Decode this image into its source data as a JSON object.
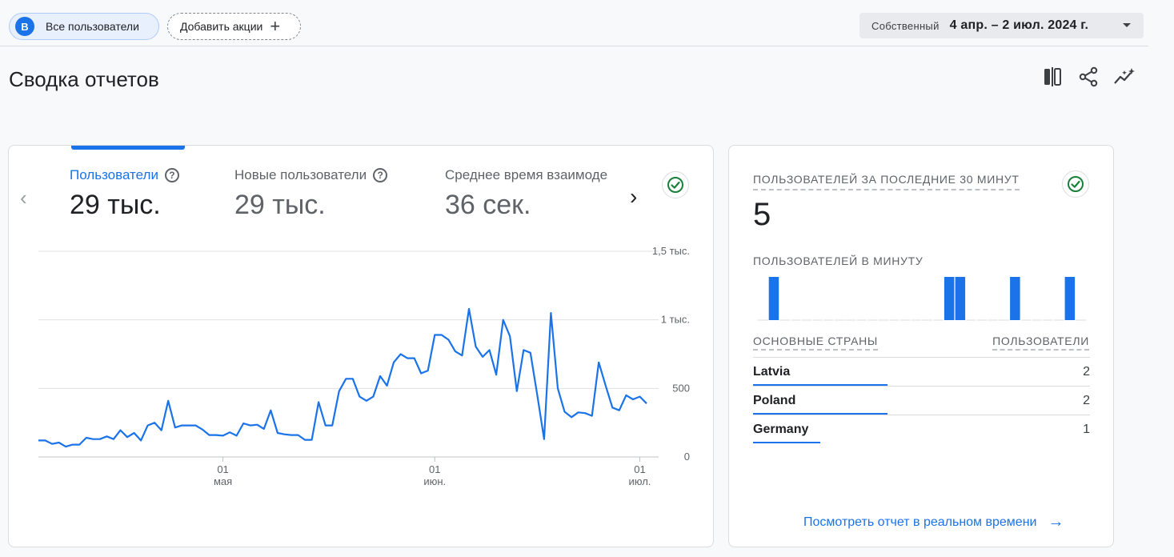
{
  "header": {
    "segment_chip": {
      "letter": "В",
      "label": "Все пользователи"
    },
    "add_button": {
      "label": "Добавить акции",
      "plus": "+"
    },
    "date_range": {
      "comparison": "Собственный",
      "range": "4 апр. – 2 июл. 2024 г."
    }
  },
  "page": {
    "title": "Сводка отчетов",
    "toolbar_icons": [
      "compare-columns-icon",
      "share-icon",
      "insights-icon"
    ]
  },
  "metrics": [
    {
      "label": "Пользователи",
      "value": "29 тыс.",
      "active": true,
      "help": "?"
    },
    {
      "label": "Новые пользователи",
      "value": "29 тыс.",
      "active": false,
      "help": "?"
    },
    {
      "label": "Среднее время взаимоде",
      "value": "36 сек.",
      "active": false
    }
  ],
  "nav": {
    "prev": "‹",
    "next": "›"
  },
  "chart_data": {
    "type": "line",
    "title": "",
    "xlabel": "",
    "ylabel": "",
    "ylim": [
      0,
      1500
    ],
    "y_ticks": [
      "1,5 тыс.",
      "1 тыс.",
      "500",
      "0"
    ],
    "y_tick_values": [
      1500,
      1000,
      500,
      0
    ],
    "x_ticks": [
      {
        "day": "01",
        "month": "мая",
        "index": 27
      },
      {
        "day": "01",
        "month": "июн.",
        "index": 58
      },
      {
        "day": "01",
        "month": "июл.",
        "index": 88
      }
    ],
    "x_start": "2024-04-04",
    "x_end": "2024-07-02",
    "color": "#1a73e8",
    "series": [
      {
        "values": [
          120,
          120,
          95,
          105,
          75,
          90,
          90,
          140,
          130,
          130,
          150,
          130,
          195,
          145,
          175,
          120,
          230,
          250,
          195,
          410,
          215,
          230,
          230,
          230,
          200,
          160,
          160,
          155,
          180,
          155,
          245,
          230,
          235,
          205,
          340,
          175,
          165,
          160,
          160,
          125,
          125,
          400,
          230,
          230,
          480,
          570,
          570,
          440,
          410,
          440,
          590,
          520,
          690,
          750,
          720,
          720,
          610,
          630,
          890,
          890,
          855,
          770,
          740,
          1080,
          805,
          730,
          780,
          600,
          1000,
          880,
          480,
          780,
          760,
          450,
          130,
          1050,
          500,
          330,
          290,
          325,
          320,
          300,
          690,
          520,
          360,
          340,
          450,
          420,
          440,
          390
        ]
      }
    ]
  },
  "realtime": {
    "title": "ПОЛЬЗОВАТЕЛЕЙ ЗА ПОСЛЕДНИЕ 30 МИНУТ",
    "value": "5",
    "per_minute_label": "ПОЛЬЗОВАТЕЛЕЙ В МИНУТУ",
    "per_minute": [
      0,
      1,
      0,
      0,
      0,
      0,
      0,
      0,
      0,
      0,
      0,
      0,
      0,
      0,
      0,
      0,
      0,
      1,
      1,
      0,
      0,
      0,
      0,
      1,
      0,
      0,
      0,
      0,
      1,
      0
    ],
    "countries_header": "ОСНОВНЫЕ СТРАНЫ",
    "users_header": "ПОЛЬЗОВАТЕЛИ",
    "countries": [
      {
        "name": "Latvia",
        "users": "2",
        "share": 0.4
      },
      {
        "name": "Poland",
        "users": "2",
        "share": 0.4
      },
      {
        "name": "Germany",
        "users": "1",
        "share": 0.2
      }
    ],
    "link_label": "Посмотреть отчет в реальном времени",
    "link_arrow": "→"
  },
  "colors": {
    "accent": "#1a73e8",
    "check": "#188038"
  }
}
